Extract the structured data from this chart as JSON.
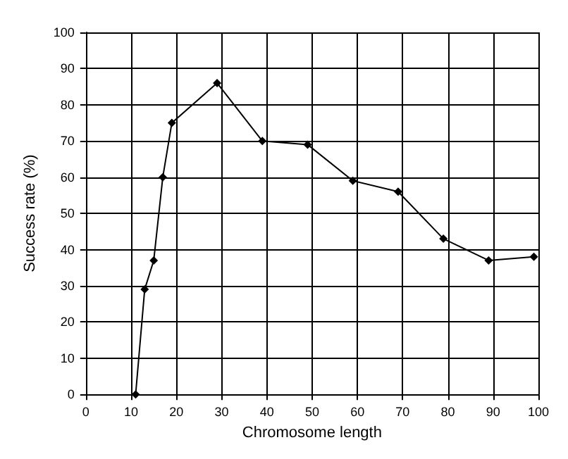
{
  "chart_data": {
    "type": "line",
    "xlabel": "Chromosome length",
    "ylabel": "Success rate (%)",
    "x": [
      11,
      13,
      15,
      17,
      19,
      29,
      39,
      49,
      59,
      69,
      79,
      89,
      99
    ],
    "series": [
      {
        "color": "#000000",
        "values": [
          0,
          29,
          37,
          60,
          75,
          86,
          70,
          69,
          59,
          56,
          43,
          37,
          38
        ]
      }
    ],
    "xlim": [
      0,
      100
    ],
    "xticks": [
      0,
      10,
      20,
      30,
      40,
      50,
      60,
      70,
      80,
      90,
      100
    ],
    "ylim": [
      0,
      100
    ],
    "yticks": [
      0,
      10,
      20,
      30,
      40,
      50,
      60,
      70,
      80,
      90,
      100
    ],
    "grid": true,
    "marker": "diamond",
    "line_style": "solid"
  }
}
